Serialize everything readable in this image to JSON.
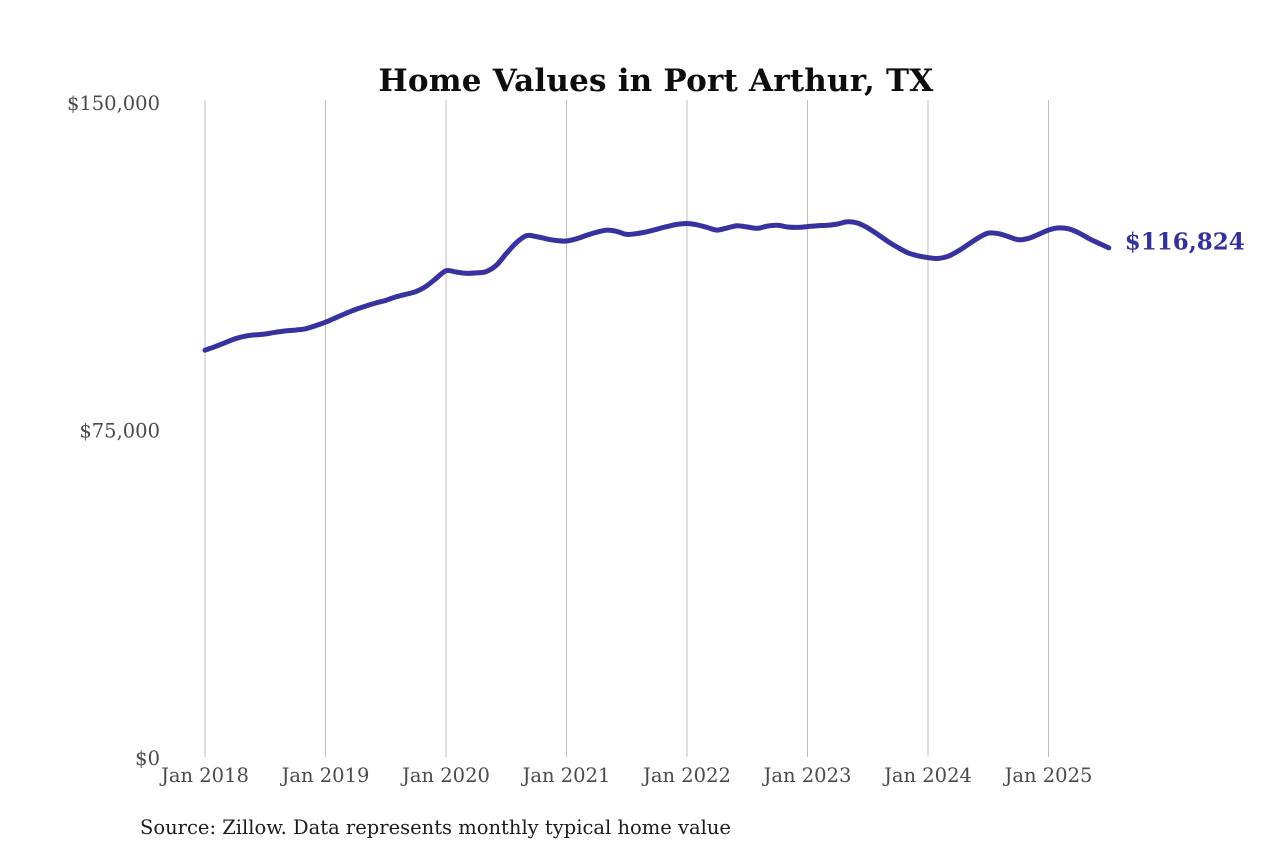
{
  "title": "Home Values in Port Arthur, TX",
  "source_note": "Source: Zillow. Data represents monthly typical home value",
  "end_label": "$116,824",
  "colors": {
    "line": "#37329e",
    "end_label": "#34319b",
    "gridline": "#bdbdbd",
    "tick_text": "#4a4a4a",
    "title_text": "#0d0d0d",
    "background": "#ffffff"
  },
  "chart_data": {
    "type": "line",
    "title": "Home Values in Port Arthur, TX",
    "xlabel": "",
    "ylabel": "",
    "x_start_month": "2018-01",
    "x_end_month": "2025-07",
    "x_tick_labels": [
      "Jan 2018",
      "Jan 2019",
      "Jan 2020",
      "Jan 2021",
      "Jan 2022",
      "Jan 2023",
      "Jan 2024",
      "Jan 2025"
    ],
    "y_ticks": [
      {
        "label": "$0",
        "value": 0
      },
      {
        "label": "$75,000",
        "value": 75000
      },
      {
        "label": "$150,000",
        "value": 150000
      }
    ],
    "ylim": [
      0,
      150000
    ],
    "grid": "vertical-only",
    "legend": "none",
    "final_value": 116824,
    "series": [
      {
        "name": "Monthly typical home value",
        "color": "#37329e",
        "values": [
          93400,
          94200,
          95100,
          96000,
          96600,
          96900,
          97100,
          97500,
          97800,
          98000,
          98300,
          99000,
          99800,
          100800,
          101800,
          102700,
          103500,
          104200,
          104800,
          105600,
          106200,
          106800,
          108000,
          109800,
          111600,
          111300,
          111000,
          111100,
          111400,
          112800,
          115500,
          118000,
          119600,
          119400,
          118900,
          118500,
          118400,
          118900,
          119700,
          120400,
          120900,
          120600,
          119900,
          120100,
          120500,
          121100,
          121700,
          122200,
          122400,
          122100,
          121500,
          120900,
          121400,
          121900,
          121600,
          121300,
          121800,
          122000,
          121600,
          121500,
          121700,
          121900,
          122000,
          122300,
          122800,
          122500,
          121400,
          119900,
          118300,
          116900,
          115700,
          115000,
          114600,
          114400,
          114900,
          116100,
          117600,
          119100,
          120200,
          120100,
          119400,
          118700,
          119000,
          119900,
          120900,
          121400,
          121200,
          120300,
          119000,
          117900,
          116824
        ]
      }
    ]
  }
}
